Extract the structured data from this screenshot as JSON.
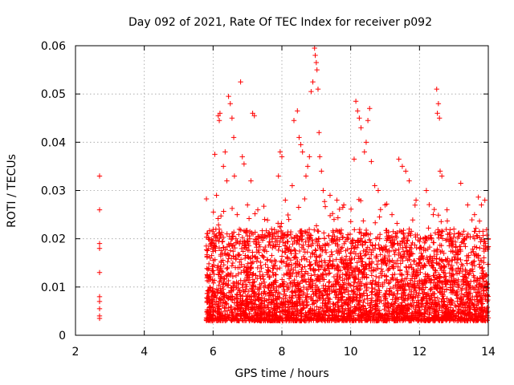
{
  "chart_data": {
    "type": "scatter",
    "title": "Day 092 of 2021, Rate Of TEC Index for receiver p092",
    "xlabel": "GPS time / hours",
    "ylabel": "ROTI / TECUs",
    "xlim": [
      2,
      14
    ],
    "ylim": [
      0,
      0.06
    ],
    "xticks": [
      2,
      4,
      6,
      8,
      10,
      12,
      14
    ],
    "xtick_labels": [
      "2",
      "4",
      "6",
      "8",
      "10",
      "12",
      "14"
    ],
    "yticks": [
      0,
      0.01,
      0.02,
      0.03,
      0.04,
      0.05,
      0.06
    ],
    "ytick_labels": [
      "0",
      "0.01",
      "0.02",
      "0.03",
      "0.04",
      "0.05",
      "0.06"
    ],
    "grid": true,
    "marker": "plus",
    "marker_color": "#ff0000",
    "series": [
      {
        "name": "ROTI",
        "density_profile": {
          "description": "Dense cluster of ROTI samples between hours 5.8 and 14; isolated samples near hour 2.7",
          "background_min": 0.003,
          "background_max": 0.022,
          "dense_start_hour": 5.8,
          "dense_end_hour": 14.0
        },
        "points": [
          [
            2.7,
            0.033
          ],
          [
            2.7,
            0.026
          ],
          [
            2.7,
            0.019
          ],
          [
            2.7,
            0.018
          ],
          [
            2.7,
            0.013
          ],
          [
            2.7,
            0.008
          ],
          [
            2.7,
            0.007
          ],
          [
            2.7,
            0.0055
          ],
          [
            2.7,
            0.004
          ],
          [
            2.7,
            0.0035
          ],
          [
            6.05,
            0.0375
          ],
          [
            6.1,
            0.029
          ],
          [
            6.15,
            0.0455
          ],
          [
            6.2,
            0.046
          ],
          [
            6.18,
            0.0445
          ],
          [
            6.3,
            0.035
          ],
          [
            6.35,
            0.038
          ],
          [
            6.4,
            0.032
          ],
          [
            6.45,
            0.0495
          ],
          [
            6.5,
            0.048
          ],
          [
            6.55,
            0.045
          ],
          [
            6.6,
            0.041
          ],
          [
            6.62,
            0.033
          ],
          [
            6.7,
            0.025
          ],
          [
            6.8,
            0.0525
          ],
          [
            6.85,
            0.037
          ],
          [
            6.9,
            0.0355
          ],
          [
            7.0,
            0.027
          ],
          [
            7.1,
            0.032
          ],
          [
            7.15,
            0.046
          ],
          [
            7.2,
            0.0455
          ],
          [
            7.3,
            0.026
          ],
          [
            7.5,
            0.024
          ],
          [
            7.7,
            0.022
          ],
          [
            7.9,
            0.033
          ],
          [
            7.95,
            0.038
          ],
          [
            8.0,
            0.037
          ],
          [
            8.1,
            0.028
          ],
          [
            8.2,
            0.024
          ],
          [
            8.3,
            0.031
          ],
          [
            8.35,
            0.0445
          ],
          [
            8.45,
            0.0465
          ],
          [
            8.5,
            0.041
          ],
          [
            8.55,
            0.0395
          ],
          [
            8.6,
            0.038
          ],
          [
            8.7,
            0.033
          ],
          [
            8.75,
            0.035
          ],
          [
            8.8,
            0.037
          ],
          [
            8.85,
            0.0505
          ],
          [
            8.9,
            0.0525
          ],
          [
            8.95,
            0.0595
          ],
          [
            8.97,
            0.058
          ],
          [
            9.0,
            0.0565
          ],
          [
            9.02,
            0.055
          ],
          [
            9.05,
            0.051
          ],
          [
            9.08,
            0.042
          ],
          [
            9.1,
            0.037
          ],
          [
            9.15,
            0.034
          ],
          [
            9.2,
            0.03
          ],
          [
            9.4,
            0.029
          ],
          [
            9.6,
            0.028
          ],
          [
            9.8,
            0.027
          ],
          [
            10.1,
            0.0365
          ],
          [
            10.15,
            0.0485
          ],
          [
            10.2,
            0.0465
          ],
          [
            10.25,
            0.045
          ],
          [
            10.3,
            0.043
          ],
          [
            10.4,
            0.038
          ],
          [
            10.45,
            0.04
          ],
          [
            10.5,
            0.0445
          ],
          [
            10.55,
            0.047
          ],
          [
            10.6,
            0.036
          ],
          [
            10.7,
            0.031
          ],
          [
            10.8,
            0.03
          ],
          [
            11.0,
            0.027
          ],
          [
            11.2,
            0.025
          ],
          [
            11.4,
            0.0365
          ],
          [
            11.5,
            0.035
          ],
          [
            11.6,
            0.034
          ],
          [
            11.7,
            0.032
          ],
          [
            11.9,
            0.028
          ],
          [
            12.2,
            0.03
          ],
          [
            12.4,
            0.025
          ],
          [
            12.5,
            0.051
          ],
          [
            12.55,
            0.048
          ],
          [
            12.52,
            0.046
          ],
          [
            12.58,
            0.045
          ],
          [
            12.6,
            0.034
          ],
          [
            12.65,
            0.033
          ],
          [
            12.8,
            0.026
          ],
          [
            13.0,
            0.022
          ],
          [
            13.2,
            0.0315
          ],
          [
            13.4,
            0.027
          ],
          [
            13.6,
            0.025
          ],
          [
            13.8,
            0.027
          ],
          [
            13.9,
            0.028
          ],
          [
            14.0,
            0.02
          ]
        ]
      }
    ]
  }
}
